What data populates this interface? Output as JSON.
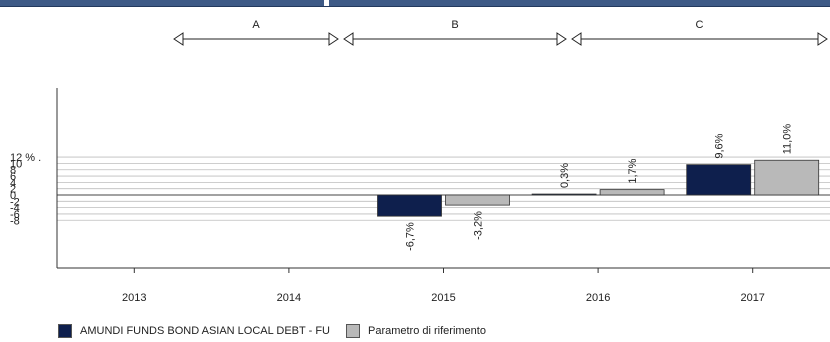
{
  "chart_data": {
    "type": "bar",
    "categories": [
      "2013",
      "2014",
      "2015",
      "2016",
      "2017"
    ],
    "series": [
      {
        "name": "AMUNDI FUNDS BOND ASIAN LOCAL DEBT - FU",
        "color": "#0e1f4d",
        "values": [
          null,
          null,
          -6.7,
          0.3,
          9.6
        ],
        "labels": [
          "",
          "",
          "-6,7%",
          "0,3%",
          "9,6%"
        ]
      },
      {
        "name": "Parametro di riferimento",
        "color": "#b9b9b9",
        "values": [
          null,
          null,
          -3.2,
          1.7,
          11.0
        ],
        "labels": [
          "",
          "",
          "-3,2%",
          "1,7%",
          "11,0%"
        ]
      }
    ],
    "y_ticks": [
      {
        "value": 12,
        "label": "12 % ."
      },
      {
        "value": 10,
        "label": "10"
      },
      {
        "value": 8,
        "label": "8"
      },
      {
        "value": 6,
        "label": "6"
      },
      {
        "value": 4,
        "label": "4"
      },
      {
        "value": 2,
        "label": "2"
      },
      {
        "value": 0,
        "label": "0"
      },
      {
        "value": -2,
        "label": "-2"
      },
      {
        "value": -4,
        "label": "-4"
      },
      {
        "value": -6,
        "label": "-6"
      },
      {
        "value": -8,
        "label": "-8"
      }
    ],
    "ylim": [
      -24,
      36
    ],
    "periods": [
      {
        "label": "A",
        "from": "2013",
        "to": "2014"
      },
      {
        "label": "B",
        "from": "2014",
        "to": "2016"
      },
      {
        "label": "C",
        "from": "2016",
        "to": "2017"
      }
    ],
    "legend_position": "bottom-left",
    "grid": true
  }
}
